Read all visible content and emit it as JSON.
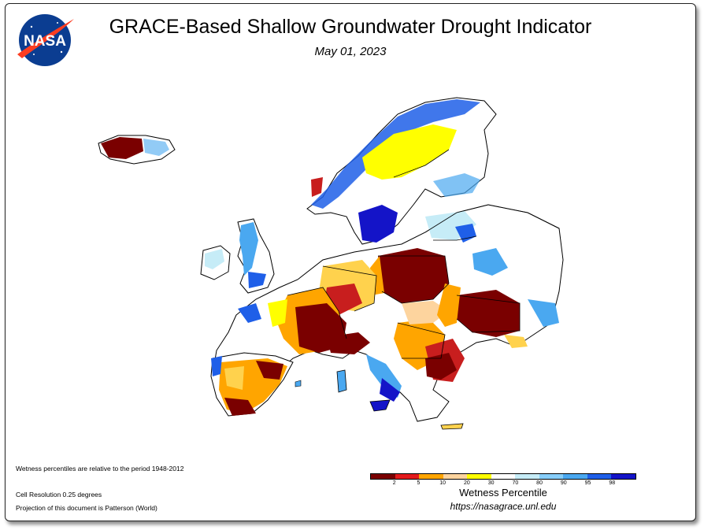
{
  "header": {
    "title": "GRACE-Based Shallow Groundwater Drought Indicator",
    "date": "May 01, 2023"
  },
  "logo": {
    "text": "NASA",
    "icon": "nasa-meatball-icon"
  },
  "notes": {
    "period": "Wetness percentiles are relative to the period 1948-2012",
    "resolution": "Cell Resolution 0.25 degrees",
    "projection": "Projection of this document is Patterson (World)"
  },
  "legend": {
    "title": "Wetness Percentile",
    "colors": [
      "#7a0000",
      "#e31a1c",
      "#ffa500",
      "#fdd49e",
      "#ffff00",
      "#ffffff",
      "#c6ecf7",
      "#87cefa",
      "#4aa8f0",
      "#1f5fe8",
      "#1414c8"
    ],
    "ticks": [
      "2",
      "5",
      "10",
      "20",
      "30",
      "70",
      "80",
      "90",
      "95",
      "98"
    ]
  },
  "source": {
    "url": "https://nasagrace.unl.edu"
  },
  "palette": {
    "extreme_dry": "#7a0000",
    "severe_dry": "#c81e1e",
    "moderate_dry": "#ffa500",
    "abnormal_dry": "#fdd49e",
    "dry": "#ffff00",
    "normal": "#ffffff",
    "wet": "#4aa8f0",
    "very_wet": "#1414c8"
  }
}
